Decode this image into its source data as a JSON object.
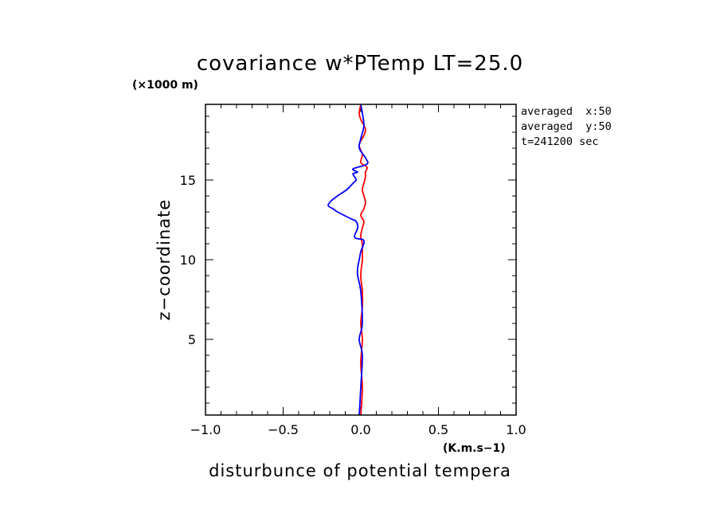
{
  "chart_data": {
    "type": "line",
    "title": "covariance w*PTemp LT=25.0",
    "y_unit": "(×1000 m)",
    "x_unit": "(K.m.s−1)",
    "xlabel": "disturbunce of potential tempera",
    "ylabel": "z−coordinate",
    "xlim": [
      -1.0,
      1.0
    ],
    "ylim": [
      0.25,
      19.75
    ],
    "x_ticks": [
      {
        "value": -1.0,
        "label": "−1.0"
      },
      {
        "value": -0.5,
        "label": "−0.5"
      },
      {
        "value": 0.0,
        "label": "0.0"
      },
      {
        "value": 0.5,
        "label": "0.5"
      },
      {
        "value": 1.0,
        "label": "1.0"
      }
    ],
    "y_ticks": [
      {
        "value": 5,
        "label": "5"
      },
      {
        "value": 10,
        "label": "10"
      },
      {
        "value": 15,
        "label": "15"
      }
    ],
    "annotations": [
      "averaged  x:50",
      "averaged  y:50",
      "t=241200 sec"
    ],
    "series": [
      {
        "color": "#ff0000",
        "x": [
          0.0,
          0.01,
          0.0,
          0.01,
          0.0,
          0.01,
          0.01,
          0.0,
          0.01,
          0.01,
          0.01,
          0.0,
          0.01,
          0.02,
          0.0,
          0.02,
          0.03,
          0.02,
          0.01,
          0.02,
          0.03,
          0.03,
          0.04,
          0.0,
          0.01,
          -0.01,
          0.02,
          0.03,
          0.0,
          -0.01,
          0.0
        ],
        "y": [
          0.25,
          2.0,
          3.5,
          5.0,
          6.0,
          7.0,
          8.0,
          9.0,
          10.0,
          10.5,
          11.0,
          11.5,
          12.0,
          12.4,
          12.8,
          13.2,
          13.6,
          14.0,
          14.4,
          14.8,
          15.2,
          15.5,
          15.8,
          16.1,
          16.6,
          17.2,
          17.8,
          18.2,
          18.8,
          19.2,
          19.75
        ]
      },
      {
        "color": "#0000ff",
        "x": [
          -0.01,
          0.0,
          0.01,
          -0.01,
          0.01,
          0.0,
          -0.02,
          -0.02,
          -0.01,
          0.0,
          0.02,
          -0.04,
          -0.02,
          -0.03,
          -0.07,
          -0.15,
          -0.18,
          -0.21,
          -0.19,
          -0.15,
          -0.09,
          -0.05,
          -0.03,
          -0.04,
          -0.05,
          -0.02,
          -0.05,
          0.04,
          0.03,
          -0.01,
          0.0,
          0.02,
          0.01,
          0.0
        ],
        "y": [
          0.25,
          2.0,
          4.0,
          5.0,
          6.0,
          8.0,
          9.0,
          9.5,
          10.0,
          10.5,
          11.2,
          11.4,
          12.0,
          12.4,
          12.6,
          13.0,
          13.2,
          13.4,
          13.7,
          14.0,
          14.4,
          14.8,
          15.0,
          15.2,
          15.4,
          15.5,
          15.7,
          16.0,
          16.4,
          17.0,
          17.6,
          18.4,
          19.2,
          19.75
        ]
      }
    ]
  }
}
